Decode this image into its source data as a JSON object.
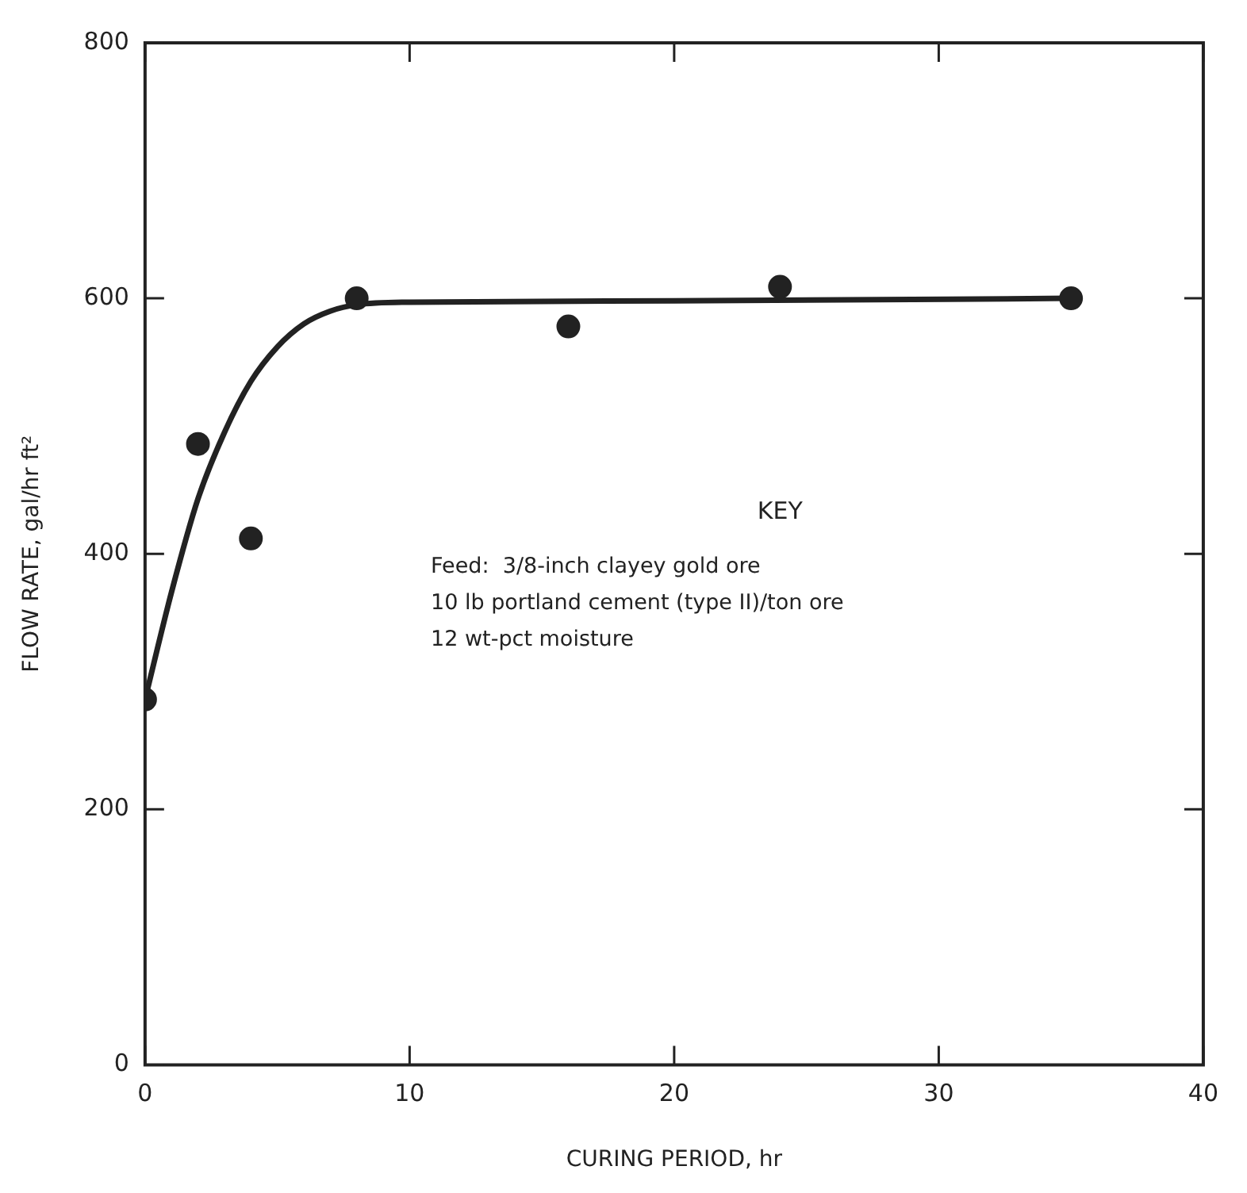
{
  "chart_data": {
    "type": "scatter",
    "xlabel": "CURING PERIOD, hr",
    "ylabel": "FLOW RATE, gal/hr ft²",
    "xlim": [
      0,
      40
    ],
    "xticks": [
      0,
      10,
      20,
      30,
      40
    ],
    "ylim": [
      0,
      800
    ],
    "yticks": [
      0,
      200,
      400,
      600,
      800
    ],
    "grid": false,
    "legend": false,
    "series": [
      {
        "color": "#222222",
        "marker": "circle",
        "x": [
          0,
          2,
          4,
          8,
          16,
          24,
          35
        ],
        "values": [
          286,
          486,
          412,
          600,
          578,
          609,
          600
        ]
      },
      {
        "type": "line",
        "color": "#222222",
        "marker": "none",
        "line_style": "solid",
        "x": [
          0,
          1,
          2,
          3,
          4,
          5,
          6,
          7,
          8,
          10,
          20,
          35
        ],
        "values": [
          286,
          370,
          443,
          495,
          535,
          562,
          580,
          590,
          595,
          597,
          598,
          600
        ]
      }
    ],
    "annotations": [
      "KEY",
      "Feed:  3/8-inch clayey gold ore",
      "10 lb portland cement (type II)/ton ore",
      "12 wt-pct moisture"
    ]
  }
}
